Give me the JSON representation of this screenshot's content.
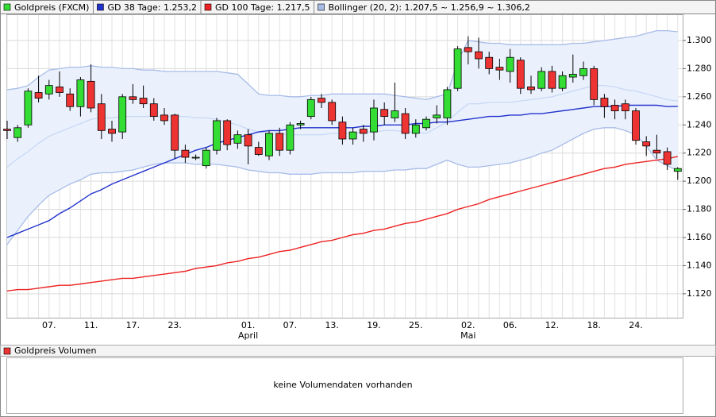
{
  "chart_data": {
    "type": "candlestick",
    "name": "Goldpreis (FXCM)",
    "up_color": "#33dd33",
    "down_color": "#ee3333",
    "categories": [
      null,
      null,
      null,
      null,
      "07.",
      null,
      null,
      null,
      "11.",
      null,
      null,
      null,
      "17.",
      null,
      null,
      null,
      "23.",
      null,
      null,
      null,
      null,
      null,
      null,
      "01.",
      null,
      null,
      null,
      "07.",
      null,
      null,
      null,
      "13.",
      null,
      null,
      null,
      "19.",
      null,
      null,
      null,
      "25.",
      null,
      null,
      null,
      null,
      "02.",
      null,
      null,
      null,
      "06.",
      null,
      null,
      null,
      "12.",
      null,
      null,
      null,
      "18.",
      null,
      null,
      null,
      "24.",
      null,
      null,
      null,
      null
    ],
    "months": [
      null,
      null,
      null,
      null,
      null,
      null,
      null,
      null,
      null,
      null,
      null,
      null,
      null,
      null,
      null,
      null,
      null,
      null,
      null,
      null,
      null,
      null,
      null,
      "April",
      null,
      null,
      null,
      null,
      null,
      null,
      null,
      null,
      null,
      null,
      null,
      null,
      null,
      null,
      null,
      null,
      null,
      null,
      null,
      null,
      "Mai",
      null,
      null,
      null,
      null,
      null,
      null,
      null,
      null,
      null,
      null,
      null,
      null,
      null,
      null,
      null,
      null,
      null,
      null,
      null,
      null
    ],
    "open": [
      1.237,
      1.231,
      1.24,
      1.263,
      1.262,
      1.267,
      1.262,
      1.253,
      1.271,
      1.255,
      1.237,
      1.235,
      1.26,
      1.259,
      1.255,
      1.247,
      1.247,
      1.222,
      1.217,
      1.211,
      1.222,
      1.243,
      1.227,
      1.233,
      1.224,
      1.218,
      1.234,
      1.222,
      1.24,
      1.246,
      1.259,
      1.256,
      1.242,
      1.23,
      1.237,
      1.235,
      1.251,
      1.245,
      1.248,
      1.234,
      1.238,
      1.245,
      1.245,
      1.266,
      1.295,
      1.292,
      1.288,
      1.281,
      1.278,
      1.286,
      1.267,
      1.266,
      1.278,
      1.266,
      1.274,
      1.275,
      1.28,
      1.259,
      1.254,
      1.255,
      1.25,
      1.228,
      1.222,
      1.221,
      1.207
    ],
    "high": [
      1.243,
      1.24,
      1.266,
      1.275,
      1.272,
      1.278,
      1.266,
      1.274,
      1.283,
      1.262,
      1.243,
      1.262,
      1.269,
      1.268,
      1.259,
      1.252,
      1.248,
      1.226,
      1.219,
      1.224,
      1.245,
      1.244,
      1.236,
      1.237,
      1.228,
      1.236,
      1.238,
      1.242,
      1.243,
      1.26,
      1.262,
      1.258,
      1.246,
      1.238,
      1.24,
      1.258,
      1.256,
      1.27,
      1.252,
      1.244,
      1.246,
      1.254,
      1.267,
      1.296,
      1.303,
      1.302,
      1.292,
      1.287,
      1.294,
      1.288,
      1.275,
      1.281,
      1.282,
      1.278,
      1.29,
      1.285,
      1.282,
      1.262,
      1.258,
      1.258,
      1.252,
      1.232,
      1.233,
      1.224,
      1.21
    ],
    "low": [
      1.23,
      1.228,
      1.238,
      1.256,
      1.258,
      1.26,
      1.25,
      1.246,
      1.249,
      1.23,
      1.228,
      1.23,
      1.255,
      1.252,
      1.243,
      1.24,
      1.216,
      1.213,
      1.215,
      1.209,
      1.219,
      1.222,
      1.223,
      1.212,
      1.218,
      1.215,
      1.218,
      1.219,
      1.237,
      1.244,
      1.252,
      1.24,
      1.226,
      1.226,
      1.228,
      1.229,
      1.24,
      1.242,
      1.23,
      1.231,
      1.236,
      1.241,
      1.24,
      1.264,
      1.283,
      1.28,
      1.276,
      1.272,
      1.27,
      1.262,
      1.262,
      1.264,
      1.263,
      1.264,
      1.27,
      1.272,
      1.254,
      1.245,
      1.244,
      1.244,
      1.226,
      1.218,
      1.216,
      1.208,
      1.201
    ],
    "close": [
      1.236,
      1.238,
      1.264,
      1.259,
      1.268,
      1.263,
      1.253,
      1.272,
      1.252,
      1.236,
      1.234,
      1.26,
      1.258,
      1.255,
      1.246,
      1.243,
      1.222,
      1.217,
      1.217,
      1.222,
      1.243,
      1.226,
      1.233,
      1.225,
      1.219,
      1.234,
      1.222,
      1.24,
      1.241,
      1.258,
      1.256,
      1.243,
      1.23,
      1.235,
      1.234,
      1.252,
      1.246,
      1.25,
      1.234,
      1.24,
      1.244,
      1.247,
      1.265,
      1.294,
      1.292,
      1.287,
      1.28,
      1.279,
      1.288,
      1.266,
      1.265,
      1.278,
      1.266,
      1.275,
      1.276,
      1.28,
      1.258,
      1.253,
      1.25,
      1.25,
      1.229,
      1.225,
      1.22,
      1.212,
      1.209
    ],
    "lines": [
      {
        "name": "GD 38 Tage: 1.253,2",
        "color": "#2233cc",
        "values": [
          1.16,
          1.163,
          1.166,
          1.169,
          1.172,
          1.177,
          1.181,
          1.186,
          1.191,
          1.194,
          1.198,
          1.201,
          1.204,
          1.207,
          1.21,
          1.213,
          1.216,
          1.219,
          1.222,
          1.224,
          1.227,
          1.229,
          1.231,
          1.233,
          1.235,
          1.236,
          1.236,
          1.237,
          1.238,
          1.238,
          1.238,
          1.238,
          1.238,
          1.238,
          1.239,
          1.239,
          1.24,
          1.24,
          1.24,
          1.241,
          1.241,
          1.242,
          1.242,
          1.243,
          1.244,
          1.245,
          1.246,
          1.246,
          1.247,
          1.247,
          1.248,
          1.248,
          1.249,
          1.25,
          1.251,
          1.252,
          1.253,
          1.253,
          1.253,
          1.254,
          1.254,
          1.254,
          1.254,
          1.253,
          1.2532
        ]
      },
      {
        "name": "GD 100 Tage: 1.217,5",
        "color": "#ee2222",
        "values": [
          1.122,
          1.123,
          1.123,
          1.124,
          1.125,
          1.126,
          1.126,
          1.127,
          1.128,
          1.129,
          1.13,
          1.131,
          1.131,
          1.132,
          1.133,
          1.134,
          1.135,
          1.136,
          1.138,
          1.139,
          1.14,
          1.142,
          1.143,
          1.145,
          1.146,
          1.148,
          1.15,
          1.151,
          1.153,
          1.155,
          1.157,
          1.158,
          1.16,
          1.162,
          1.163,
          1.165,
          1.166,
          1.168,
          1.17,
          1.171,
          1.173,
          1.175,
          1.177,
          1.18,
          1.182,
          1.184,
          1.187,
          1.189,
          1.191,
          1.193,
          1.195,
          1.197,
          1.199,
          1.201,
          1.203,
          1.205,
          1.207,
          1.209,
          1.21,
          1.212,
          1.213,
          1.214,
          1.215,
          1.216,
          1.2175
        ]
      }
    ],
    "bollinger": {
      "name": "Bollinger (20, 2): 1.207,5 ~ 1.256,9 ~ 1.306,2",
      "color": "#a8bce8",
      "fill": "#eaf1fd",
      "middle_color": "#c8d8f4",
      "upper": [
        1.265,
        1.266,
        1.268,
        1.274,
        1.279,
        1.28,
        1.281,
        1.281,
        1.282,
        1.281,
        1.281,
        1.28,
        1.28,
        1.279,
        1.279,
        1.278,
        1.278,
        1.278,
        1.278,
        1.278,
        1.278,
        1.277,
        1.276,
        1.269,
        1.262,
        1.261,
        1.261,
        1.26,
        1.26,
        1.261,
        1.261,
        1.262,
        1.262,
        1.262,
        1.262,
        1.262,
        1.262,
        1.261,
        1.26,
        1.259,
        1.258,
        1.26,
        1.262,
        1.285,
        1.3,
        1.299,
        1.298,
        1.298,
        1.297,
        1.297,
        1.297,
        1.297,
        1.297,
        1.297,
        1.298,
        1.298,
        1.299,
        1.3,
        1.301,
        1.302,
        1.303,
        1.305,
        1.307,
        1.307,
        1.3062
      ],
      "middle": [
        1.21,
        1.216,
        1.221,
        1.227,
        1.232,
        1.235,
        1.238,
        1.241,
        1.244,
        1.245,
        1.245,
        1.246,
        1.246,
        1.246,
        1.246,
        1.246,
        1.246,
        1.246,
        1.245,
        1.245,
        1.244,
        1.242,
        1.24,
        1.237,
        1.235,
        1.234,
        1.234,
        1.233,
        1.233,
        1.233,
        1.233,
        1.234,
        1.234,
        1.234,
        1.235,
        1.235,
        1.236,
        1.236,
        1.235,
        1.235,
        1.234,
        1.238,
        1.242,
        1.249,
        1.255,
        1.255,
        1.256,
        1.256,
        1.256,
        1.257,
        1.258,
        1.259,
        1.26,
        1.262,
        1.264,
        1.266,
        1.268,
        1.268,
        1.267,
        1.265,
        1.264,
        1.262,
        1.26,
        1.258,
        1.2569
      ],
      "lower": [
        1.155,
        1.165,
        1.175,
        1.183,
        1.19,
        1.194,
        1.198,
        1.201,
        1.205,
        1.206,
        1.206,
        1.207,
        1.208,
        1.21,
        1.212,
        1.213,
        1.213,
        1.213,
        1.212,
        1.212,
        1.212,
        1.211,
        1.21,
        1.208,
        1.207,
        1.206,
        1.206,
        1.205,
        1.205,
        1.205,
        1.206,
        1.206,
        1.206,
        1.206,
        1.207,
        1.207,
        1.207,
        1.208,
        1.208,
        1.209,
        1.209,
        1.212,
        1.215,
        1.212,
        1.21,
        1.21,
        1.211,
        1.212,
        1.213,
        1.215,
        1.217,
        1.22,
        1.222,
        1.226,
        1.23,
        1.234,
        1.237,
        1.238,
        1.238,
        1.236,
        1.233,
        1.225,
        1.215,
        1.211,
        1.2075
      ]
    },
    "ylim": [
      1.103,
      1.3186
    ],
    "yticks": [
      {
        "value": 1.12,
        "label": "1.120"
      },
      {
        "value": 1.14,
        "label": "1.140"
      },
      {
        "value": 1.16,
        "label": "1.160"
      },
      {
        "value": 1.18,
        "label": "1.180"
      },
      {
        "value": 1.2,
        "label": "1.200"
      },
      {
        "value": 1.22,
        "label": "1.220"
      },
      {
        "value": 1.24,
        "label": "1.240"
      },
      {
        "value": 1.26,
        "label": "1.260"
      },
      {
        "value": 1.28,
        "label": "1.280"
      },
      {
        "value": 1.3,
        "label": "1.300"
      }
    ],
    "grid": true,
    "volume": {
      "title": "Goldpreis Volumen",
      "color": "#ee3333",
      "message": "keine Volumendaten vorhanden"
    }
  }
}
